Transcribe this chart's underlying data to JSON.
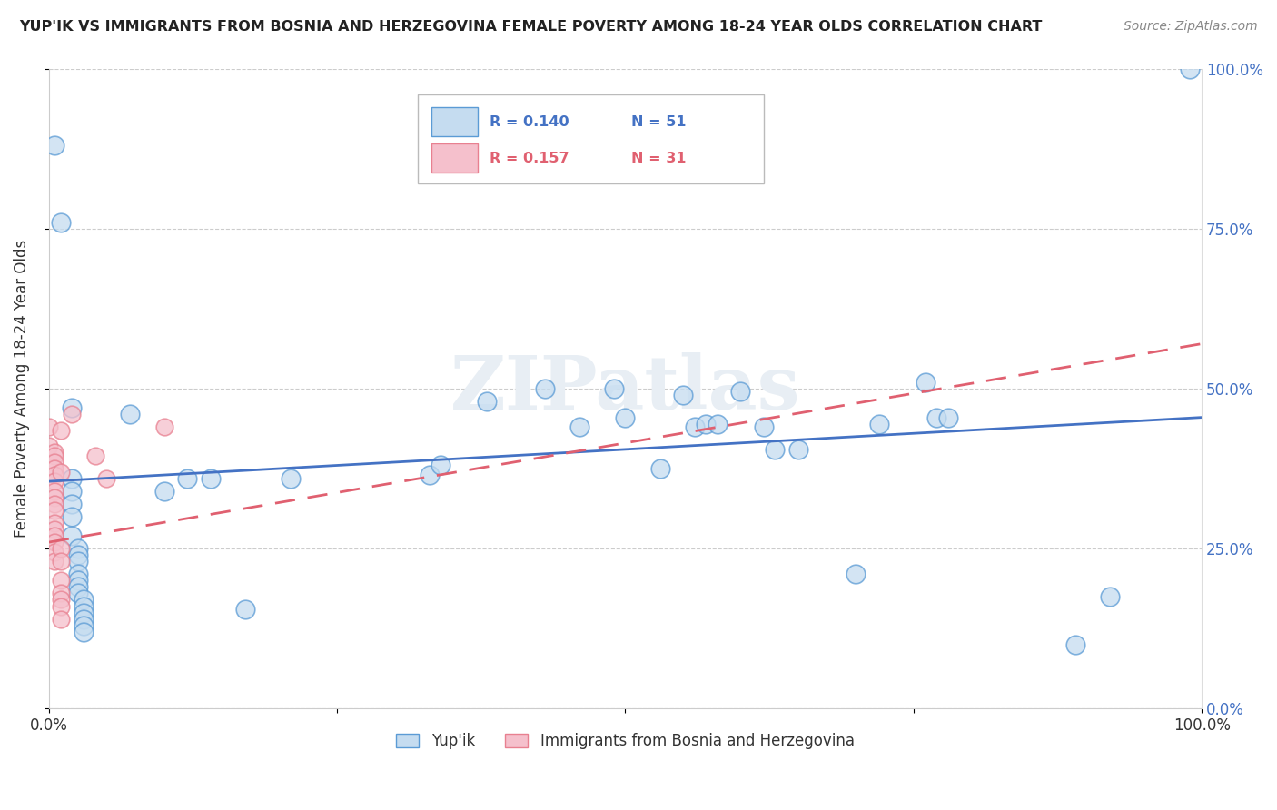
{
  "title": "YUP'IK VS IMMIGRANTS FROM BOSNIA AND HERZEGOVINA FEMALE POVERTY AMONG 18-24 YEAR OLDS CORRELATION CHART",
  "source": "Source: ZipAtlas.com",
  "ylabel": "Female Poverty Among 18-24 Year Olds",
  "xlim": [
    0,
    1
  ],
  "ylim": [
    0,
    1
  ],
  "xticks": [
    0,
    0.25,
    0.5,
    0.75,
    1.0
  ],
  "yticks": [
    0,
    0.25,
    0.5,
    0.75,
    1.0
  ],
  "xticklabels": [
    "0.0%",
    "",
    "",
    "",
    "100.0%"
  ],
  "yticklabels_left": [
    "",
    "",
    "",
    "",
    ""
  ],
  "yticklabels_right": [
    "0.0%",
    "25.0%",
    "50.0%",
    "75.0%",
    "100.0%"
  ],
  "legend_r1": "R = 0.140",
  "legend_n1": "N = 51",
  "legend_r2": "R = 0.157",
  "legend_n2": "N = 31",
  "watermark": "ZIPatlas",
  "blue_color": "#c5dcf0",
  "pink_color": "#f5c0cc",
  "blue_edge_color": "#5b9bd5",
  "pink_edge_color": "#e88090",
  "blue_line_color": "#4472c4",
  "pink_line_color": "#e06070",
  "blue_scatter": [
    [
      0.005,
      0.88
    ],
    [
      0.01,
      0.76
    ],
    [
      0.02,
      0.47
    ],
    [
      0.02,
      0.36
    ],
    [
      0.02,
      0.34
    ],
    [
      0.02,
      0.32
    ],
    [
      0.02,
      0.3
    ],
    [
      0.02,
      0.27
    ],
    [
      0.025,
      0.25
    ],
    [
      0.025,
      0.24
    ],
    [
      0.025,
      0.23
    ],
    [
      0.025,
      0.21
    ],
    [
      0.025,
      0.2
    ],
    [
      0.025,
      0.19
    ],
    [
      0.025,
      0.18
    ],
    [
      0.03,
      0.17
    ],
    [
      0.03,
      0.16
    ],
    [
      0.03,
      0.15
    ],
    [
      0.03,
      0.14
    ],
    [
      0.03,
      0.13
    ],
    [
      0.03,
      0.12
    ],
    [
      0.07,
      0.46
    ],
    [
      0.1,
      0.34
    ],
    [
      0.12,
      0.36
    ],
    [
      0.14,
      0.36
    ],
    [
      0.17,
      0.155
    ],
    [
      0.21,
      0.36
    ],
    [
      0.33,
      0.365
    ],
    [
      0.34,
      0.38
    ],
    [
      0.38,
      0.48
    ],
    [
      0.43,
      0.5
    ],
    [
      0.46,
      0.44
    ],
    [
      0.49,
      0.5
    ],
    [
      0.5,
      0.455
    ],
    [
      0.53,
      0.375
    ],
    [
      0.55,
      0.49
    ],
    [
      0.56,
      0.44
    ],
    [
      0.57,
      0.445
    ],
    [
      0.58,
      0.445
    ],
    [
      0.6,
      0.495
    ],
    [
      0.62,
      0.44
    ],
    [
      0.63,
      0.405
    ],
    [
      0.65,
      0.405
    ],
    [
      0.7,
      0.21
    ],
    [
      0.72,
      0.445
    ],
    [
      0.76,
      0.51
    ],
    [
      0.77,
      0.455
    ],
    [
      0.78,
      0.455
    ],
    [
      0.89,
      0.1
    ],
    [
      0.92,
      0.175
    ],
    [
      0.99,
      1.0
    ]
  ],
  "pink_scatter": [
    [
      0.0,
      0.44
    ],
    [
      0.0,
      0.41
    ],
    [
      0.005,
      0.4
    ],
    [
      0.005,
      0.395
    ],
    [
      0.005,
      0.385
    ],
    [
      0.005,
      0.375
    ],
    [
      0.005,
      0.365
    ],
    [
      0.005,
      0.355
    ],
    [
      0.005,
      0.34
    ],
    [
      0.005,
      0.33
    ],
    [
      0.005,
      0.32
    ],
    [
      0.005,
      0.31
    ],
    [
      0.005,
      0.29
    ],
    [
      0.005,
      0.28
    ],
    [
      0.005,
      0.27
    ],
    [
      0.005,
      0.26
    ],
    [
      0.005,
      0.245
    ],
    [
      0.005,
      0.23
    ],
    [
      0.01,
      0.435
    ],
    [
      0.01,
      0.37
    ],
    [
      0.01,
      0.25
    ],
    [
      0.01,
      0.23
    ],
    [
      0.01,
      0.2
    ],
    [
      0.01,
      0.18
    ],
    [
      0.01,
      0.17
    ],
    [
      0.01,
      0.16
    ],
    [
      0.01,
      0.14
    ],
    [
      0.02,
      0.46
    ],
    [
      0.04,
      0.395
    ],
    [
      0.05,
      0.36
    ],
    [
      0.1,
      0.44
    ]
  ],
  "blue_trendline_x": [
    0.0,
    1.0
  ],
  "blue_trendline_y": [
    0.355,
    0.455
  ],
  "pink_trendline_x": [
    0.0,
    1.0
  ],
  "pink_trendline_y": [
    0.26,
    0.57
  ]
}
